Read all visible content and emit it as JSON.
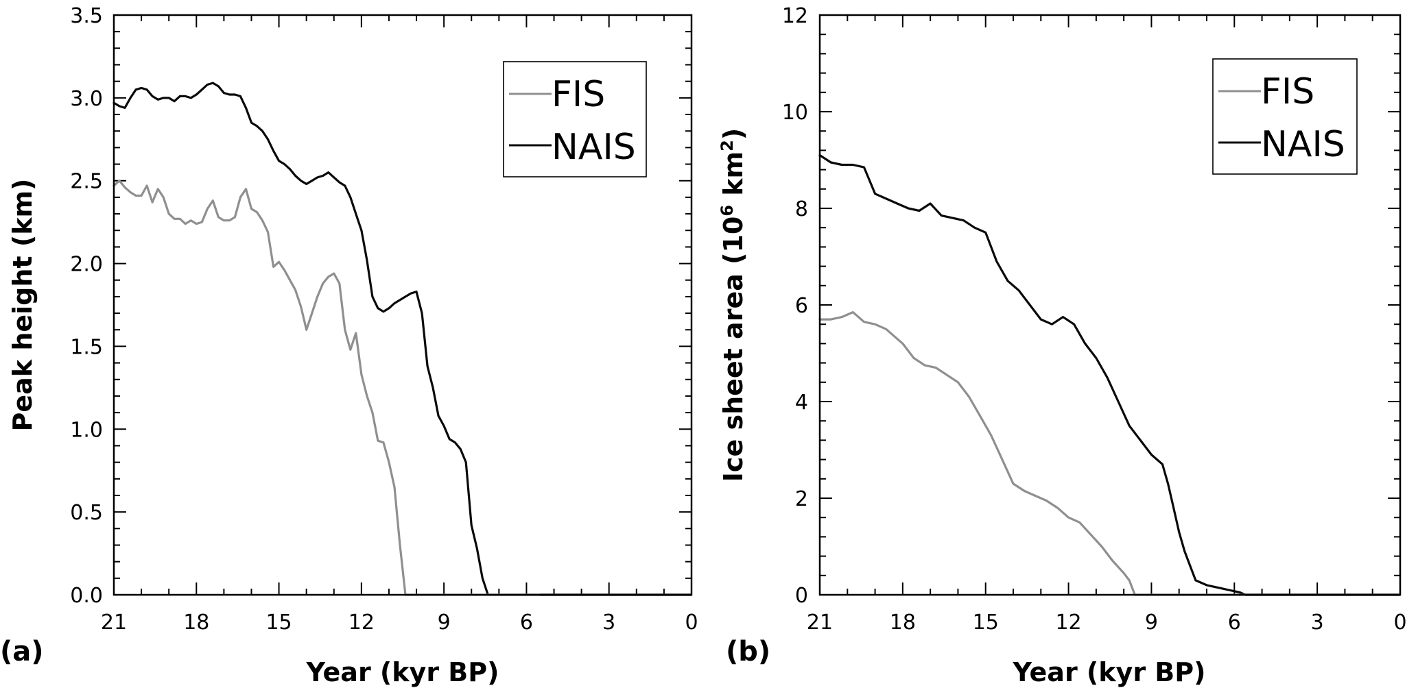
{
  "colors": {
    "FIS": "#8f8f8f",
    "NAIS": "#0a0a0a",
    "axis": "#000000",
    "background": "#ffffff"
  },
  "panels": [
    {
      "label": "(a)",
      "xlabel": "Year (kyr BP)",
      "ylabel": "Peak height (km)"
    },
    {
      "label": "(b)",
      "xlabel": "Year (kyr BP)",
      "ylabel_main": "Ice sheet area (10",
      "ylabel_exp6": "6",
      "ylabel_mid": " km",
      "ylabel_exp2": "2",
      "ylabel_end": ")"
    }
  ],
  "chart_data": [
    {
      "type": "line",
      "panel": "(a)",
      "xlabel": "Year (kyr BP)",
      "ylabel": "Peak height (km)",
      "xlim": [
        21,
        0
      ],
      "ylim": [
        0,
        3.5
      ],
      "x_ticks": [
        21,
        18,
        15,
        12,
        9,
        6,
        3,
        0
      ],
      "x_tick_labels": [
        "21",
        "18",
        "15",
        "12",
        "9",
        "6",
        "3",
        "0"
      ],
      "y_ticks": [
        0,
        0.5,
        1.0,
        1.5,
        2.0,
        2.5,
        3.0,
        3.5
      ],
      "y_tick_labels": [
        "0.0",
        "0.5",
        "1.0",
        "1.5",
        "2.0",
        "2.5",
        "3.0",
        "3.5"
      ],
      "legend": [
        "FIS",
        "NAIS"
      ],
      "legend_position": "top-right",
      "grid": false,
      "series": [
        {
          "name": "FIS",
          "x": [
            21,
            20.8,
            20.6,
            20.4,
            20.2,
            20.0,
            19.8,
            19.6,
            19.4,
            19.2,
            19.0,
            18.8,
            18.6,
            18.4,
            18.2,
            18.0,
            17.8,
            17.6,
            17.4,
            17.2,
            17.0,
            16.8,
            16.6,
            16.4,
            16.2,
            16.0,
            15.8,
            15.6,
            15.4,
            15.2,
            15.0,
            14.8,
            14.6,
            14.4,
            14.2,
            14.0,
            13.8,
            13.6,
            13.4,
            13.2,
            13.0,
            12.8,
            12.6,
            12.4,
            12.2,
            12.0,
            11.8,
            11.6,
            11.4,
            11.2,
            11.0,
            10.8,
            10.6,
            10.4,
            10.2,
            10.0,
            9.8,
            9.6,
            9.55
          ],
          "y": [
            2.47,
            2.5,
            2.46,
            2.43,
            2.41,
            2.41,
            2.47,
            2.37,
            2.45,
            2.4,
            2.3,
            2.27,
            2.27,
            2.24,
            2.26,
            2.24,
            2.25,
            2.33,
            2.38,
            2.28,
            2.26,
            2.26,
            2.28,
            2.4,
            2.45,
            2.33,
            2.31,
            2.26,
            2.19,
            1.98,
            2.01,
            1.96,
            1.9,
            1.84,
            1.74,
            1.6,
            1.7,
            1.8,
            1.88,
            1.92,
            1.94,
            1.88,
            1.6,
            1.48,
            1.58,
            1.33,
            1.2,
            1.1,
            0.93,
            0.92,
            0.8,
            0.65,
            0.3,
            0.0,
            0.0,
            0.0,
            0.0,
            0.0,
            0.0
          ]
        },
        {
          "name": "NAIS",
          "x": [
            21,
            20.8,
            20.6,
            20.4,
            20.2,
            20.0,
            19.8,
            19.6,
            19.4,
            19.2,
            19.0,
            18.8,
            18.6,
            18.4,
            18.2,
            18.0,
            17.8,
            17.6,
            17.4,
            17.2,
            17.0,
            16.8,
            16.6,
            16.4,
            16.2,
            16.0,
            15.8,
            15.6,
            15.4,
            15.2,
            15.0,
            14.8,
            14.6,
            14.4,
            14.2,
            14.0,
            13.8,
            13.6,
            13.4,
            13.2,
            13.0,
            12.8,
            12.6,
            12.4,
            12.2,
            12.0,
            11.8,
            11.6,
            11.4,
            11.2,
            11.0,
            10.8,
            10.6,
            10.4,
            10.2,
            10.0,
            9.8,
            9.6,
            9.4,
            9.2,
            9.0,
            8.8,
            8.6,
            8.4,
            8.2,
            8.0,
            7.8,
            7.6,
            7.4,
            7.2,
            7.0,
            6.8,
            6.6,
            6.4,
            6.2,
            6.0,
            5.8,
            5.6,
            5.5
          ],
          "y": [
            2.97,
            2.95,
            2.94,
            3.0,
            3.05,
            3.06,
            3.05,
            3.01,
            2.99,
            3.0,
            3.0,
            2.98,
            3.01,
            3.01,
            3.0,
            3.02,
            3.05,
            3.08,
            3.09,
            3.07,
            3.03,
            3.02,
            3.02,
            3.01,
            2.94,
            2.85,
            2.83,
            2.8,
            2.75,
            2.68,
            2.62,
            2.6,
            2.57,
            2.53,
            2.5,
            2.48,
            2.5,
            2.52,
            2.53,
            2.55,
            2.52,
            2.49,
            2.47,
            2.4,
            2.3,
            2.2,
            2.02,
            1.8,
            1.73,
            1.71,
            1.73,
            1.76,
            1.78,
            1.8,
            1.82,
            1.83,
            1.7,
            1.38,
            1.25,
            1.08,
            1.02,
            0.94,
            0.92,
            0.88,
            0.8,
            0.42,
            0.28,
            0.1,
            0.0,
            0.0,
            0.0,
            0.0,
            0.0,
            0.0,
            0.0,
            0.0,
            0.0,
            0.0,
            0.0
          ]
        }
      ]
    },
    {
      "type": "line",
      "panel": "(b)",
      "xlabel": "Year (kyr BP)",
      "ylabel": "Ice sheet area (10^6 km^2)",
      "xlim": [
        21,
        0
      ],
      "ylim": [
        0,
        12
      ],
      "x_ticks": [
        21,
        18,
        15,
        12,
        9,
        6,
        3,
        0
      ],
      "x_tick_labels": [
        "21",
        "18",
        "15",
        "12",
        "9",
        "6",
        "3",
        "0"
      ],
      "y_ticks": [
        0,
        2,
        4,
        6,
        8,
        10,
        12
      ],
      "y_tick_labels": [
        "0",
        "2",
        "4",
        "6",
        "8",
        "10",
        "12"
      ],
      "legend": [
        "FIS",
        "NAIS"
      ],
      "legend_position": "top-right",
      "grid": false,
      "series": [
        {
          "name": "FIS",
          "x": [
            21,
            20.6,
            20.2,
            19.8,
            19.4,
            19.0,
            18.6,
            18.2,
            18.0,
            17.6,
            17.2,
            16.8,
            16.4,
            16.0,
            15.6,
            15.2,
            14.8,
            14.4,
            14.0,
            13.6,
            13.2,
            12.8,
            12.4,
            12.0,
            11.6,
            11.2,
            10.8,
            10.4,
            10.0,
            9.8,
            9.6,
            9.55
          ],
          "y": [
            5.7,
            5.7,
            5.75,
            5.85,
            5.65,
            5.6,
            5.5,
            5.3,
            5.2,
            4.9,
            4.75,
            4.7,
            4.55,
            4.4,
            4.1,
            3.7,
            3.3,
            2.8,
            2.3,
            2.15,
            2.05,
            1.95,
            1.8,
            1.6,
            1.5,
            1.25,
            1.0,
            0.7,
            0.45,
            0.3,
            0.0,
            0.0
          ]
        },
        {
          "name": "NAIS",
          "x": [
            21,
            20.6,
            20.2,
            19.8,
            19.4,
            19.0,
            18.6,
            18.2,
            17.8,
            17.4,
            17.0,
            16.6,
            16.2,
            15.8,
            15.4,
            15.0,
            14.6,
            14.2,
            13.8,
            13.4,
            13.0,
            12.6,
            12.2,
            11.8,
            11.4,
            11.0,
            10.6,
            10.2,
            9.8,
            9.4,
            9.0,
            8.6,
            8.4,
            8.2,
            8.0,
            7.8,
            7.6,
            7.4,
            7.0,
            6.6,
            6.2,
            5.8,
            5.6
          ],
          "y": [
            9.1,
            8.95,
            8.9,
            8.9,
            8.85,
            8.3,
            8.2,
            8.1,
            8.0,
            7.95,
            8.1,
            7.85,
            7.8,
            7.75,
            7.6,
            7.5,
            6.9,
            6.5,
            6.3,
            6.0,
            5.7,
            5.6,
            5.75,
            5.6,
            5.2,
            4.9,
            4.5,
            4.0,
            3.5,
            3.2,
            2.9,
            2.7,
            2.3,
            1.8,
            1.3,
            0.9,
            0.6,
            0.3,
            0.2,
            0.15,
            0.1,
            0.05,
            0.0
          ]
        }
      ]
    }
  ]
}
